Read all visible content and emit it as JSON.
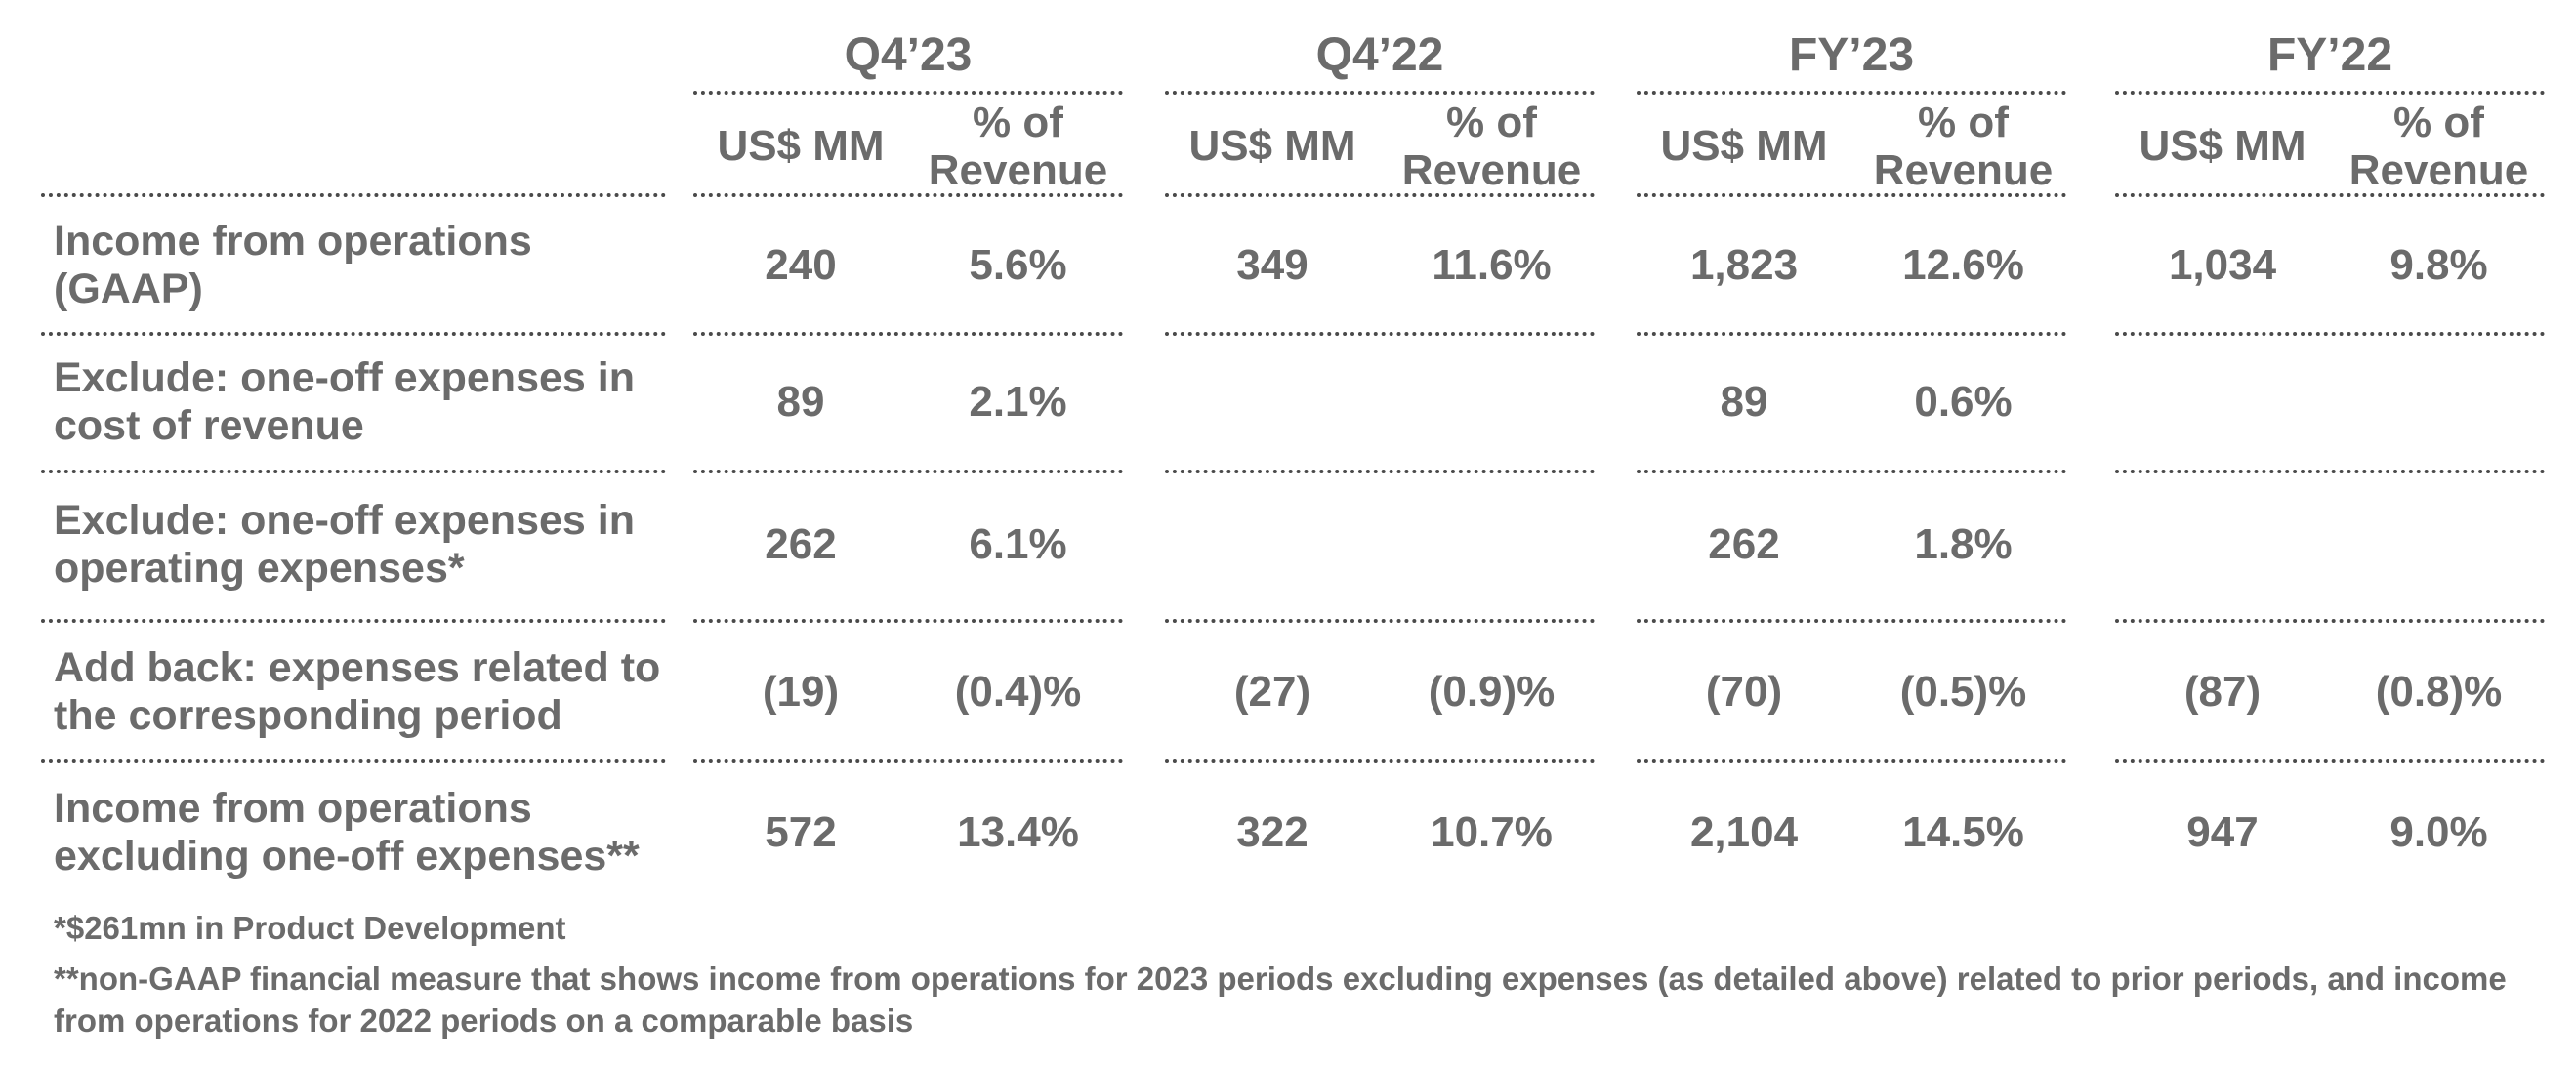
{
  "periods": [
    {
      "name": "Q4’23",
      "col1_header": "US$ MM",
      "col2_header": "% of Revenue"
    },
    {
      "name": "Q4’22",
      "col1_header": "US$ MM",
      "col2_header": "% of Revenue"
    },
    {
      "name": "FY’23",
      "col1_header": "US$ MM",
      "col2_header": "% of Revenue"
    },
    {
      "name": "FY’22",
      "col1_header": "US$ MM",
      "col2_header": "% of Revenue"
    }
  ],
  "rows": [
    {
      "label": "Income from operations (GAAP)",
      "values": [
        [
          "240",
          "5.6%"
        ],
        [
          "349",
          "11.6%"
        ],
        [
          "1,823",
          "12.6%"
        ],
        [
          "1,034",
          "9.8%"
        ]
      ]
    },
    {
      "label": "Exclude: one-off expenses in cost of revenue",
      "values": [
        [
          "89",
          "2.1%"
        ],
        [
          "",
          ""
        ],
        [
          "89",
          "0.6%"
        ],
        [
          "",
          ""
        ]
      ]
    },
    {
      "label": "Exclude: one-off expenses in operating expenses*",
      "values": [
        [
          "262",
          "6.1%"
        ],
        [
          "",
          ""
        ],
        [
          "262",
          "1.8%"
        ],
        [
          "",
          ""
        ]
      ]
    },
    {
      "label": "Add back: expenses related to the corresponding period",
      "values": [
        [
          "(19)",
          "(0.4)%"
        ],
        [
          "(27)",
          "(0.9)%"
        ],
        [
          "(70)",
          "(0.5)%"
        ],
        [
          "(87)",
          "(0.8)%"
        ]
      ]
    },
    {
      "label": "Income from operations excluding one-off expenses**",
      "values": [
        [
          "572",
          "13.4%"
        ],
        [
          "322",
          "10.7%"
        ],
        [
          "2,104",
          "14.5%"
        ],
        [
          "947",
          "9.0%"
        ]
      ]
    }
  ],
  "footnotes": [
    "*$261mn in Product Development",
    "**non-GAAP financial measure that shows income from operations for 2023 periods excluding expenses (as detailed above) related to prior periods, and income from operations for 2022 periods on a comparable basis"
  ]
}
